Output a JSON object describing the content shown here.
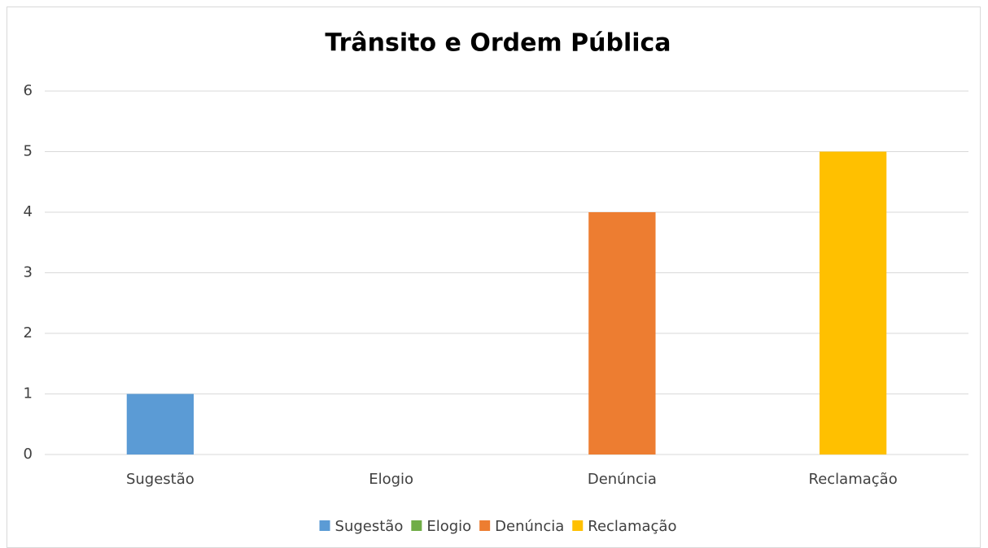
{
  "chart_data": {
    "type": "bar",
    "title": "Trânsito e Ordem Pública",
    "categories": [
      "Sugestão",
      "Elogio",
      "Denúncia",
      "Reclamação"
    ],
    "values": [
      1,
      0,
      4,
      5
    ],
    "colors": [
      "#5b9bd5",
      "#70ad47",
      "#ed7d31",
      "#ffc000"
    ],
    "ylim": [
      0,
      6
    ],
    "yticks": [
      0,
      1,
      2,
      3,
      4,
      5,
      6
    ],
    "grid": true,
    "legend": "bottom"
  }
}
